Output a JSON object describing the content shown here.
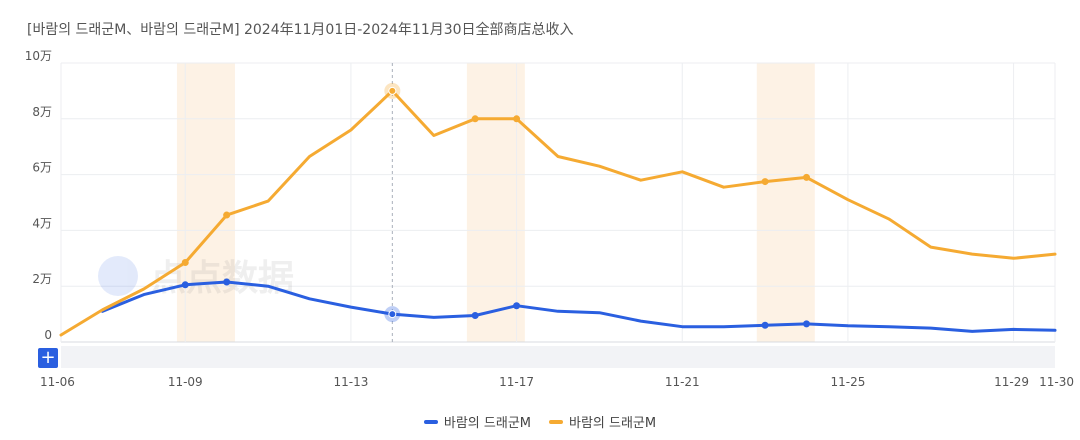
{
  "chart_data": {
    "type": "line",
    "title": "[바람의 드래군M、바람의 드래군M] 2024年11月01日-2024年11月30日全部商店总收入",
    "x": [
      "11-06",
      "11-07",
      "11-08",
      "11-09",
      "11-10",
      "11-11",
      "11-12",
      "11-13",
      "11-14",
      "11-15",
      "11-16",
      "11-17",
      "11-18",
      "11-19",
      "11-20",
      "11-21",
      "11-22",
      "11-23",
      "11-24",
      "11-25",
      "11-26",
      "11-27",
      "11-28",
      "11-29",
      "11-30"
    ],
    "x_tick_labels": [
      "11-06",
      "11-09",
      "11-13",
      "11-17",
      "11-21",
      "11-25",
      "11-29",
      "11-30"
    ],
    "y_tick_labels": [
      "0",
      "2万",
      "4万",
      "6万",
      "8万",
      "10万"
    ],
    "ylim": [
      0,
      100000
    ],
    "series": [
      {
        "name": "바람의 드래군M",
        "color": "#2a5fe0",
        "values": [
          null,
          11000,
          17000,
          20500,
          21500,
          20000,
          15500,
          12500,
          10000,
          8800,
          9500,
          13000,
          11000,
          10500,
          7500,
          5500,
          5500,
          6000,
          6500,
          5800,
          5500,
          5000,
          3800,
          4500,
          4200
        ]
      },
      {
        "name": "바람의 드래군M",
        "color": "#f5aa32",
        "values": [
          2500,
          11500,
          19000,
          28500,
          45500,
          50500,
          66500,
          76000,
          90000,
          74000,
          80000,
          80000,
          66500,
          63000,
          58000,
          61000,
          55500,
          57500,
          59000,
          51000,
          44000,
          34000,
          31500,
          30000,
          31500
        ]
      }
    ],
    "highlight_ranges": [
      [
        "11-09",
        "11-10"
      ],
      [
        "11-16",
        "11-17"
      ],
      [
        "11-23",
        "11-24"
      ]
    ],
    "crosshair_x": "11-14",
    "legend_position": "bottom-center",
    "grid": true,
    "watermark": "点点数据"
  },
  "controls": {
    "zoom_label": "+"
  }
}
